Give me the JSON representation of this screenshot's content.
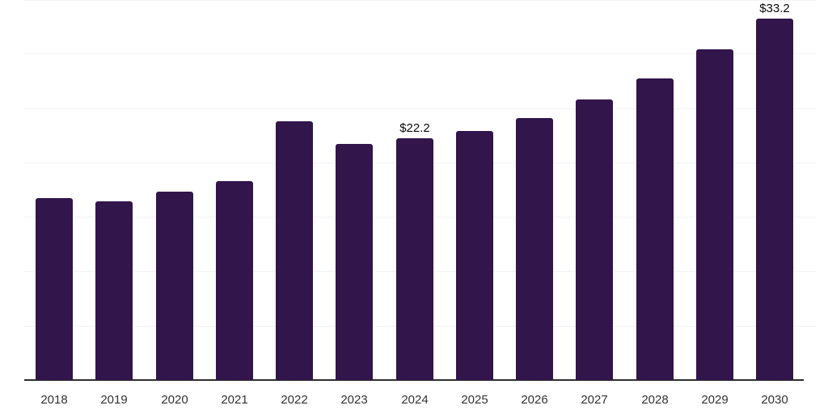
{
  "chart_data": {
    "type": "bar",
    "title": "",
    "xlabel": "",
    "ylabel": "",
    "categories": [
      "2018",
      "2019",
      "2020",
      "2021",
      "2022",
      "2023",
      "2024",
      "2025",
      "2026",
      "2027",
      "2028",
      "2029",
      "2030"
    ],
    "values": [
      16.7,
      16.4,
      17.3,
      18.3,
      23.8,
      21.7,
      22.2,
      22.9,
      24.1,
      25.8,
      27.7,
      30.4,
      33.2
    ],
    "bar_labels": {
      "2024": "$22.2",
      "2030": "$33.2"
    },
    "ylim": [
      0,
      35
    ],
    "gridline_values": [
      5,
      10,
      15,
      20,
      25,
      30,
      35
    ],
    "grid": "horizontal",
    "legend": "none",
    "y_axis_tick_labels": "none",
    "colors": {
      "bar": "#32154b",
      "axis_line": "#2e2e2e",
      "gridline": "#f3f3f3",
      "value_label": "#0a0a0a",
      "tick_label": "#333333",
      "background": "#ffffff"
    }
  }
}
